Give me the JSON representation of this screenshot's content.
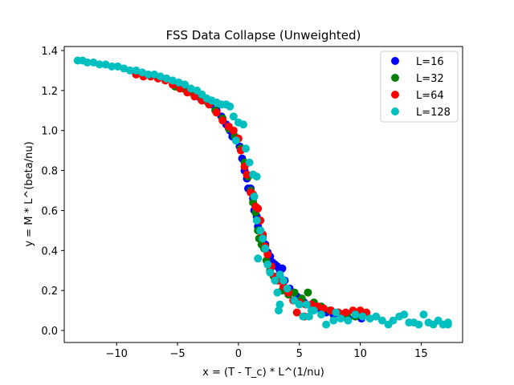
{
  "chart_data": {
    "type": "scatter",
    "title": "FSS Data Collapse (Unweighted)",
    "xlabel": "x = (T - T_c) * L^(1/nu)",
    "ylabel": "y = M * L^(beta/nu)",
    "xlim": [
      -14.3,
      18.4
    ],
    "ylim": [
      -0.06,
      1.42
    ],
    "xticks": [
      -10,
      -5,
      0,
      5,
      10,
      15
    ],
    "yticks": [
      0.0,
      0.2,
      0.4,
      0.6,
      0.8,
      1.0,
      1.2,
      1.4
    ],
    "grid": false,
    "legend_position": "top-right",
    "series": [
      {
        "name": "L=16",
        "color": "#0000ff",
        "points": [
          [
            -3.1,
            1.16
          ],
          [
            -2.6,
            1.15
          ],
          [
            -2.2,
            1.13
          ],
          [
            -1.8,
            1.1
          ],
          [
            -1.4,
            1.07
          ],
          [
            -1.0,
            1.03
          ],
          [
            -0.7,
            1.0
          ],
          [
            -0.5,
            0.97
          ],
          [
            -0.2,
            0.95
          ],
          [
            0.1,
            0.92
          ],
          [
            0.3,
            0.86
          ],
          [
            0.5,
            0.8
          ],
          [
            0.7,
            0.76
          ],
          [
            0.8,
            0.71
          ],
          [
            1.0,
            0.71
          ],
          [
            1.2,
            0.66
          ],
          [
            1.3,
            0.6
          ],
          [
            1.5,
            0.57
          ],
          [
            1.6,
            0.52
          ],
          [
            1.8,
            0.5
          ],
          [
            2.0,
            0.47
          ],
          [
            2.2,
            0.43
          ],
          [
            2.4,
            0.39
          ],
          [
            2.6,
            0.37
          ],
          [
            2.8,
            0.34
          ],
          [
            3.0,
            0.33
          ],
          [
            3.2,
            0.32
          ],
          [
            3.4,
            0.3
          ],
          [
            3.6,
            0.31
          ],
          [
            3.4,
            0.27
          ],
          [
            3.8,
            0.25
          ],
          [
            4.2,
            0.21
          ],
          [
            4.8,
            0.17
          ],
          [
            5.4,
            0.14
          ],
          [
            6.0,
            0.12
          ],
          [
            6.6,
            0.11
          ],
          [
            7.2,
            0.09
          ],
          [
            7.8,
            0.08
          ],
          [
            8.4,
            0.07
          ],
          [
            9.0,
            0.06
          ],
          [
            9.6,
            0.07
          ],
          [
            10.1,
            0.06
          ]
        ]
      },
      {
        "name": "L=32",
        "color": "#008000",
        "points": [
          [
            -5.2,
            1.22
          ],
          [
            -4.5,
            1.21
          ],
          [
            -3.8,
            1.19
          ],
          [
            -3.1,
            1.17
          ],
          [
            -2.5,
            1.14
          ],
          [
            -1.9,
            1.1
          ],
          [
            -1.3,
            1.06
          ],
          [
            -0.8,
            1.01
          ],
          [
            -0.3,
            0.97
          ],
          [
            0.2,
            0.91
          ],
          [
            0.5,
            0.84
          ],
          [
            0.8,
            0.77
          ],
          [
            1.0,
            0.7
          ],
          [
            1.2,
            0.64
          ],
          [
            1.4,
            0.59
          ],
          [
            1.6,
            0.5
          ],
          [
            1.7,
            0.46
          ],
          [
            1.9,
            0.43
          ],
          [
            2.1,
            0.41
          ],
          [
            2.3,
            0.35
          ],
          [
            2.6,
            0.3
          ],
          [
            2.9,
            0.27
          ],
          [
            3.2,
            0.25
          ],
          [
            3.6,
            0.2
          ],
          [
            4.1,
            0.18
          ],
          [
            4.6,
            0.19
          ],
          [
            5.2,
            0.16
          ],
          [
            5.7,
            0.19
          ],
          [
            6.2,
            0.14
          ],
          [
            6.8,
            0.12
          ],
          [
            7.5,
            0.1
          ],
          [
            8.2,
            0.09
          ],
          [
            8.9,
            0.08
          ],
          [
            9.6,
            0.07
          ]
        ]
      },
      {
        "name": "L=64",
        "color": "#ff0000",
        "points": [
          [
            -8.4,
            1.28
          ],
          [
            -7.8,
            1.27
          ],
          [
            -7.2,
            1.27
          ],
          [
            -6.6,
            1.26
          ],
          [
            -6.0,
            1.25
          ],
          [
            -5.4,
            1.23
          ],
          [
            -4.8,
            1.21
          ],
          [
            -4.2,
            1.19
          ],
          [
            -3.6,
            1.17
          ],
          [
            -3.0,
            1.15
          ],
          [
            -2.4,
            1.13
          ],
          [
            -1.8,
            1.09
          ],
          [
            -1.3,
            1.05
          ],
          [
            -0.8,
            1.02
          ],
          [
            -0.4,
            1.0
          ],
          [
            0.0,
            0.96
          ],
          [
            0.2,
            0.9
          ],
          [
            0.5,
            0.82
          ],
          [
            0.7,
            0.78
          ],
          [
            1.0,
            0.69
          ],
          [
            1.2,
            0.68
          ],
          [
            1.4,
            0.62
          ],
          [
            1.6,
            0.61
          ],
          [
            1.8,
            0.55
          ],
          [
            2.0,
            0.48
          ],
          [
            2.2,
            0.42
          ],
          [
            2.4,
            0.38
          ],
          [
            2.7,
            0.32
          ],
          [
            3.0,
            0.27
          ],
          [
            3.3,
            0.25
          ],
          [
            3.7,
            0.22
          ],
          [
            4.1,
            0.19
          ],
          [
            4.5,
            0.15
          ],
          [
            5.0,
            0.14
          ],
          [
            5.5,
            0.13
          ],
          [
            6.0,
            0.13
          ],
          [
            6.5,
            0.12
          ],
          [
            7.0,
            0.11
          ],
          [
            7.6,
            0.1
          ],
          [
            8.2,
            0.09
          ],
          [
            8.8,
            0.09
          ],
          [
            9.4,
            0.1
          ],
          [
            10.0,
            0.1
          ],
          [
            10.5,
            0.09
          ],
          [
            4.8,
            0.09
          ],
          [
            5.4,
            0.07
          ]
        ]
      },
      {
        "name": "L=128",
        "color": "#00bfbf",
        "points": [
          [
            -13.2,
            1.35
          ],
          [
            -12.8,
            1.35
          ],
          [
            -12.4,
            1.34
          ],
          [
            -11.9,
            1.34
          ],
          [
            -11.4,
            1.33
          ],
          [
            -10.9,
            1.33
          ],
          [
            -10.4,
            1.32
          ],
          [
            -9.9,
            1.32
          ],
          [
            -9.4,
            1.31
          ],
          [
            -8.9,
            1.3
          ],
          [
            -8.4,
            1.3
          ],
          [
            -7.9,
            1.29
          ],
          [
            -7.4,
            1.28
          ],
          [
            -6.9,
            1.28
          ],
          [
            -6.4,
            1.27
          ],
          [
            -5.9,
            1.26
          ],
          [
            -5.4,
            1.25
          ],
          [
            -4.9,
            1.24
          ],
          [
            -4.4,
            1.23
          ],
          [
            -3.9,
            1.21
          ],
          [
            -3.4,
            1.2
          ],
          [
            -3.0,
            1.18
          ],
          [
            -2.6,
            1.16
          ],
          [
            -2.2,
            1.15
          ],
          [
            -1.8,
            1.14
          ],
          [
            -1.4,
            1.13
          ],
          [
            -1.0,
            1.13
          ],
          [
            -0.7,
            1.12
          ],
          [
            -0.4,
            1.07
          ],
          [
            0.0,
            1.04
          ],
          [
            0.4,
            1.03
          ],
          [
            -0.2,
            0.95
          ],
          [
            0.6,
            0.91
          ],
          [
            0.9,
            0.84
          ],
          [
            1.2,
            0.78
          ],
          [
            1.5,
            0.77
          ],
          [
            1.3,
            0.67
          ],
          [
            1.5,
            0.55
          ],
          [
            1.8,
            0.5
          ],
          [
            2.0,
            0.46
          ],
          [
            2.2,
            0.41
          ],
          [
            1.6,
            0.36
          ],
          [
            2.4,
            0.33
          ],
          [
            2.6,
            0.29
          ],
          [
            3.0,
            0.25
          ],
          [
            3.4,
            0.28
          ],
          [
            3.7,
            0.25
          ],
          [
            4.0,
            0.21
          ],
          [
            3.2,
            0.19
          ],
          [
            3.4,
            0.13
          ],
          [
            3.3,
            0.1
          ],
          [
            4.6,
            0.15
          ],
          [
            5.0,
            0.13
          ],
          [
            5.6,
            0.13
          ],
          [
            6.2,
            0.1
          ],
          [
            6.8,
            0.08
          ],
          [
            7.2,
            0.03
          ],
          [
            7.8,
            0.05
          ],
          [
            8.4,
            0.06
          ],
          [
            9.0,
            0.05
          ],
          [
            9.6,
            0.08
          ],
          [
            10.2,
            0.07
          ],
          [
            10.8,
            0.06
          ],
          [
            11.3,
            0.07
          ],
          [
            11.8,
            0.05
          ],
          [
            12.3,
            0.03
          ],
          [
            12.7,
            0.05
          ],
          [
            13.2,
            0.07
          ],
          [
            13.6,
            0.08
          ],
          [
            14.0,
            0.04
          ],
          [
            14.4,
            0.04
          ],
          [
            14.8,
            0.03
          ],
          [
            15.2,
            0.08
          ],
          [
            15.6,
            0.04
          ],
          [
            16.0,
            0.03
          ],
          [
            16.4,
            0.05
          ],
          [
            16.8,
            0.03
          ],
          [
            17.2,
            0.04
          ],
          [
            17.2,
            0.03
          ],
          [
            5.3,
            0.07
          ],
          [
            5.8,
            0.07
          ],
          [
            8.0,
            0.09
          ],
          [
            6.0,
            0.1
          ]
        ]
      }
    ]
  }
}
